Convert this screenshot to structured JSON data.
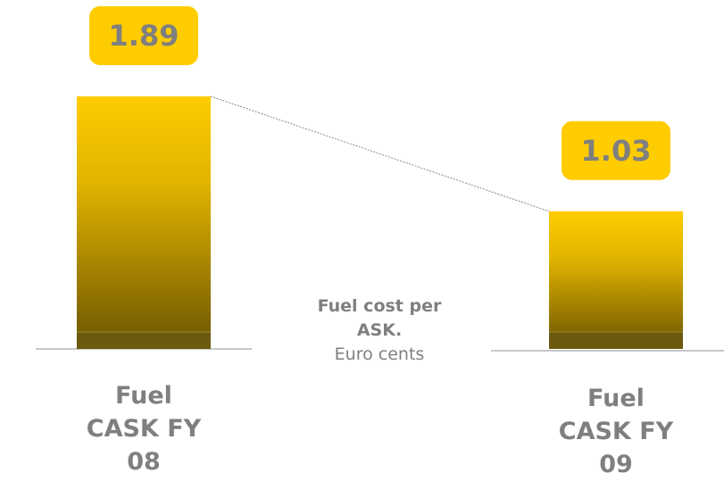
{
  "chart_data": {
    "type": "bar",
    "categories": [
      "Fuel CASK FY 08",
      "Fuel CASK FY 09"
    ],
    "values": [
      1.89,
      1.03
    ],
    "color": "#ffcc00",
    "annotation": "Fuel cost per ASK.",
    "unit_label": "Euro cents"
  }
}
